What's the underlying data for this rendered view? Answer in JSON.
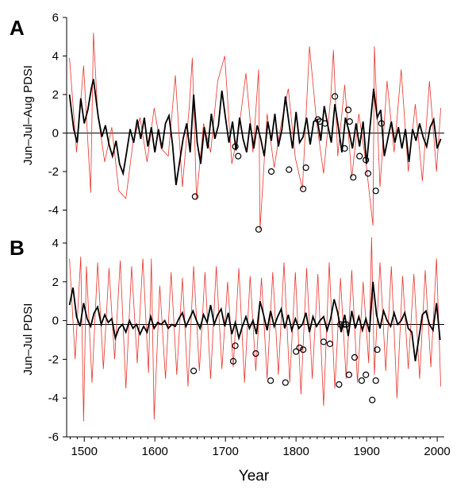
{
  "chart_data": [
    {
      "panel": "A",
      "type": "line",
      "ylabel": "Jun–Jul–Aug PDSI",
      "xlabel": "",
      "xlim": [
        1475,
        2010
      ],
      "ylim": [
        -6,
        6
      ],
      "yticks": [
        -4,
        -2,
        0,
        2,
        4,
        6
      ],
      "reference_line": 0,
      "series": [
        {
          "color": "#e8342b",
          "style": "thin annual line",
          "x": [
            1479,
            1489,
            1499,
            1509,
            1513,
            1519,
            1529,
            1539,
            1549,
            1559,
            1569,
            1579,
            1589,
            1599,
            1609,
            1619,
            1629,
            1639,
            1649,
            1653,
            1659,
            1669,
            1679,
            1689,
            1699,
            1709,
            1719,
            1729,
            1739,
            1747,
            1749,
            1759,
            1769,
            1779,
            1789,
            1799,
            1809,
            1819,
            1829,
            1839,
            1849,
            1853,
            1859,
            1869,
            1879,
            1889,
            1899,
            1909,
            1911,
            1919,
            1929,
            1939,
            1949,
            1959,
            1969,
            1979,
            1989,
            1999,
            2005
          ],
          "values": [
            3.9,
            -1.0,
            3.5,
            -3.1,
            5.2,
            1.0,
            -1.5,
            0.3,
            -3.0,
            -3.4,
            -0.5,
            0.8,
            -1.5,
            1.3,
            -0.8,
            -1.2,
            3.0,
            -2.8,
            1.5,
            3.9,
            -3.4,
            0.5,
            -1.0,
            2.7,
            4.0,
            -1.6,
            0.2,
            3.1,
            -1.0,
            3.3,
            -5.0,
            1.0,
            -1.8,
            0.5,
            2.3,
            -1.3,
            -2.9,
            4.5,
            0.6,
            -2.1,
            1.8,
            4.3,
            -1.2,
            2.5,
            -2.3,
            1.0,
            -1.5,
            -4.8,
            4.5,
            -2.8,
            2.7,
            -1.0,
            3.3,
            -2.0,
            1.5,
            -2.5,
            2.7,
            -2.0,
            1.3
          ]
        },
        {
          "color": "#000000",
          "style": "thick smoothed line",
          "x": [
            1479,
            1485,
            1490,
            1495,
            1500,
            1505,
            1510,
            1513,
            1520,
            1525,
            1530,
            1535,
            1540,
            1545,
            1550,
            1555,
            1560,
            1565,
            1570,
            1575,
            1580,
            1585,
            1590,
            1595,
            1600,
            1605,
            1610,
            1615,
            1620,
            1625,
            1630,
            1635,
            1640,
            1645,
            1650,
            1655,
            1660,
            1665,
            1670,
            1675,
            1680,
            1685,
            1690,
            1695,
            1700,
            1705,
            1710,
            1715,
            1720,
            1725,
            1730,
            1735,
            1740,
            1745,
            1750,
            1755,
            1760,
            1765,
            1770,
            1775,
            1780,
            1785,
            1790,
            1795,
            1800,
            1805,
            1810,
            1815,
            1820,
            1825,
            1830,
            1835,
            1840,
            1845,
            1850,
            1855,
            1860,
            1865,
            1870,
            1875,
            1880,
            1885,
            1890,
            1895,
            1900,
            1905,
            1910,
            1915,
            1920,
            1925,
            1930,
            1935,
            1940,
            1945,
            1950,
            1955,
            1960,
            1965,
            1970,
            1975,
            1980,
            1985,
            1990,
            1995,
            2000,
            2005
          ],
          "values": [
            2.0,
            0.2,
            -0.5,
            1.8,
            0.5,
            1.2,
            2.3,
            2.8,
            0.8,
            -0.2,
            0.4,
            -0.6,
            -1.2,
            -0.4,
            -1.6,
            -2.1,
            -1.0,
            0.2,
            -0.5,
            0.7,
            -0.3,
            0.8,
            -0.7,
            0.3,
            -1.0,
            0.2,
            -0.8,
            0.5,
            0.9,
            -0.6,
            -2.7,
            -1.5,
            -0.3,
            0.5,
            -1.0,
            2.0,
            -0.5,
            -1.6,
            0.3,
            -0.8,
            1.0,
            -0.3,
            0.4,
            2.2,
            0.8,
            -0.5,
            0.6,
            -0.9,
            0.8,
            -0.3,
            -1.0,
            0.5,
            -0.8,
            0.4,
            -0.3,
            -1.2,
            0.6,
            -0.4,
            1.0,
            -0.7,
            0.2,
            1.9,
            0.5,
            -0.8,
            1.1,
            -0.5,
            -0.2,
            0.8,
            -0.6,
            0.6,
            0.7,
            -0.4,
            1.4,
            0.4,
            -0.5,
            1.5,
            0.3,
            -1.0,
            0.8,
            0.1,
            -0.8,
            0.5,
            -0.7,
            0.6,
            -1.6,
            0.4,
            2.3,
            0.8,
            1.2,
            -1.2,
            -0.3,
            0.6,
            -0.5,
            0.3,
            -0.8,
            0.2,
            -1.5,
            0.2,
            -0.4,
            0.5,
            -0.2,
            -0.7,
            0.3,
            0.7,
            -0.8,
            -0.3
          ]
        }
      ],
      "events": {
        "style": "open circle",
        "points": [
          {
            "x": 1657,
            "y": -3.3
          },
          {
            "x": 1714,
            "y": -0.7
          },
          {
            "x": 1718,
            "y": -1.2
          },
          {
            "x": 1747,
            "y": -5.0
          },
          {
            "x": 1765,
            "y": -2.0
          },
          {
            "x": 1790,
            "y": -1.9
          },
          {
            "x": 1810,
            "y": -2.9
          },
          {
            "x": 1814,
            "y": -1.8
          },
          {
            "x": 1831,
            "y": 0.7
          },
          {
            "x": 1834,
            "y": 0.6
          },
          {
            "x": 1841,
            "y": 0.5
          },
          {
            "x": 1855,
            "y": 1.9
          },
          {
            "x": 1869,
            "y": -0.8
          },
          {
            "x": 1874,
            "y": 1.2
          },
          {
            "x": 1876,
            "y": 0.6
          },
          {
            "x": 1881,
            "y": -2.3
          },
          {
            "x": 1890,
            "y": -1.2
          },
          {
            "x": 1899,
            "y": -1.4
          },
          {
            "x": 1902,
            "y": -2.1
          },
          {
            "x": 1913,
            "y": -3.0
          },
          {
            "x": 1921,
            "y": 0.5
          }
        ]
      }
    },
    {
      "panel": "B",
      "type": "line",
      "ylabel": "Jun–Jul PDSI",
      "xlabel": "Year",
      "xlim": [
        1475,
        2010
      ],
      "ylim": [
        -6,
        4
      ],
      "yticks": [
        -6,
        -4,
        -2,
        0,
        2,
        4
      ],
      "xticks": [
        1500,
        1600,
        1700,
        1800,
        1900,
        2000
      ],
      "reference_line": -0.2,
      "series": [
        {
          "color": "#e8342b",
          "style": "thin annual line",
          "x": [
            1479,
            1487,
            1495,
            1499,
            1503,
            1511,
            1519,
            1527,
            1535,
            1543,
            1551,
            1559,
            1567,
            1575,
            1583,
            1591,
            1595,
            1599,
            1607,
            1615,
            1623,
            1631,
            1639,
            1647,
            1655,
            1663,
            1671,
            1679,
            1687,
            1695,
            1703,
            1711,
            1719,
            1727,
            1735,
            1743,
            1751,
            1759,
            1767,
            1775,
            1783,
            1791,
            1799,
            1807,
            1815,
            1823,
            1831,
            1839,
            1847,
            1855,
            1863,
            1871,
            1879,
            1887,
            1895,
            1903,
            1907,
            1911,
            1919,
            1927,
            1935,
            1943,
            1951,
            1959,
            1967,
            1975,
            1983,
            1991,
            1999,
            2005
          ],
          "values": [
            3.2,
            -2.0,
            3.3,
            -5.2,
            2.8,
            -3.2,
            3.0,
            -2.5,
            2.7,
            -2.0,
            3.1,
            -3.5,
            2.8,
            -2.2,
            3.2,
            -2.7,
            3.2,
            -5.1,
            1.8,
            -3.0,
            2.5,
            -2.8,
            2.2,
            -3.4,
            2.8,
            -2.6,
            2.5,
            -3.0,
            2.8,
            -2.5,
            2.0,
            -2.4,
            2.7,
            -3.2,
            2.3,
            -2.6,
            2.2,
            -3.0,
            2.5,
            -2.8,
            3.0,
            -3.2,
            2.5,
            -3.8,
            2.7,
            -3.0,
            2.4,
            -4.4,
            3.0,
            -3.5,
            2.2,
            -3.0,
            2.6,
            -3.2,
            2.0,
            -2.2,
            4.3,
            -2.8,
            3.0,
            -2.6,
            2.8,
            -4.0,
            2.3,
            -2.5,
            2.4,
            -3.0,
            2.6,
            -2.4,
            3.2,
            -3.4
          ]
        },
        {
          "color": "#000000",
          "style": "thick smoothed line",
          "x": [
            1479,
            1484,
            1489,
            1494,
            1499,
            1504,
            1509,
            1514,
            1519,
            1524,
            1529,
            1534,
            1539,
            1544,
            1549,
            1554,
            1559,
            1564,
            1569,
            1574,
            1579,
            1584,
            1589,
            1594,
            1599,
            1604,
            1609,
            1614,
            1619,
            1624,
            1629,
            1634,
            1639,
            1644,
            1649,
            1654,
            1659,
            1664,
            1669,
            1674,
            1679,
            1684,
            1689,
            1694,
            1699,
            1704,
            1709,
            1714,
            1719,
            1724,
            1729,
            1734,
            1739,
            1744,
            1749,
            1754,
            1759,
            1764,
            1769,
            1774,
            1779,
            1784,
            1789,
            1794,
            1799,
            1804,
            1809,
            1814,
            1819,
            1824,
            1829,
            1834,
            1839,
            1844,
            1849,
            1854,
            1859,
            1864,
            1869,
            1874,
            1879,
            1884,
            1889,
            1894,
            1899,
            1904,
            1909,
            1914,
            1919,
            1924,
            1929,
            1934,
            1939,
            1944,
            1949,
            1954,
            1959,
            1964,
            1969,
            1974,
            1979,
            1984,
            1989,
            1994,
            1999,
            2004
          ],
          "values": [
            0.8,
            1.7,
            0.2,
            -0.3,
            0.9,
            0.1,
            -0.3,
            0.4,
            0.7,
            -0.2,
            0.3,
            -0.1,
            0.1,
            -0.9,
            -0.4,
            -0.2,
            -0.6,
            0.0,
            -0.4,
            -0.2,
            -0.7,
            -0.3,
            -0.6,
            0.2,
            -0.4,
            -0.1,
            -0.2,
            0.0,
            -0.4,
            -0.2,
            -0.3,
            0.1,
            0.4,
            -0.3,
            0.1,
            0.5,
            0.0,
            -0.4,
            0.3,
            -0.1,
            0.8,
            -0.2,
            0.3,
            0.6,
            -0.3,
            0.4,
            -0.7,
            -0.1,
            -0.9,
            -0.3,
            0.2,
            -0.4,
            0.0,
            -0.7,
            1.0,
            0.3,
            -0.5,
            0.5,
            -0.3,
            0.2,
            0.6,
            -0.4,
            0.3,
            -0.5,
            0.1,
            -0.4,
            -0.2,
            0.4,
            -0.6,
            0.2,
            -0.3,
            0.0,
            0.2,
            -0.5,
            0.1,
            1.1,
            0.4,
            -0.6,
            0.3,
            -0.8,
            0.5,
            -0.4,
            0.2,
            -0.5,
            0.1,
            -0.6,
            2.0,
            0.3,
            -0.4,
            0.5,
            0.0,
            -0.3,
            0.4,
            -0.2,
            0.0,
            0.4,
            -0.4,
            -0.6,
            -2.1,
            -0.9,
            0.3,
            0.5,
            -0.2,
            -0.5,
            0.9,
            -1.0
          ]
        }
      ],
      "events": {
        "style": "open circle",
        "points": [
          {
            "x": 1655,
            "y": -2.6
          },
          {
            "x": 1711,
            "y": -2.1
          },
          {
            "x": 1714,
            "y": -1.3
          },
          {
            "x": 1743,
            "y": -1.7
          },
          {
            "x": 1764,
            "y": -3.1
          },
          {
            "x": 1785,
            "y": -3.2
          },
          {
            "x": 1800,
            "y": -1.6
          },
          {
            "x": 1805,
            "y": -1.4
          },
          {
            "x": 1810,
            "y": -1.5
          },
          {
            "x": 1839,
            "y": -1.1
          },
          {
            "x": 1848,
            "y": -1.2
          },
          {
            "x": 1861,
            "y": -3.3
          },
          {
            "x": 1863,
            "y": -0.2
          },
          {
            "x": 1868,
            "y": -0.2
          },
          {
            "x": 1871,
            "y": -0.2
          },
          {
            "x": 1875,
            "y": -2.8
          },
          {
            "x": 1883,
            "y": -1.9
          },
          {
            "x": 1893,
            "y": -3.1
          },
          {
            "x": 1899,
            "y": -2.8
          },
          {
            "x": 1908,
            "y": -4.1
          },
          {
            "x": 1913,
            "y": -3.1
          },
          {
            "x": 1915,
            "y": -1.5
          }
        ]
      }
    }
  ]
}
